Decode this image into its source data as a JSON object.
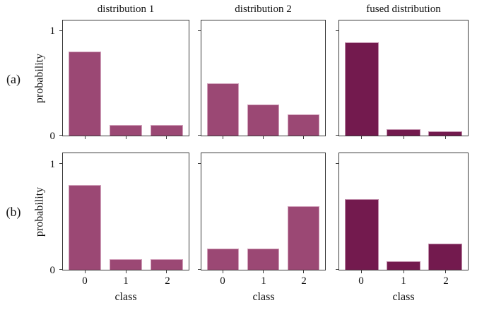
{
  "figure": {
    "row_labels": [
      "(a)",
      "(b)"
    ],
    "column_titles": [
      "distribution 1",
      "distribution 2",
      "fused distribution"
    ],
    "ylabel": "probability",
    "xlabel": "class",
    "ytick_labels": [
      "1",
      "0"
    ],
    "xtick_labels": [
      "0",
      "1",
      "2"
    ]
  },
  "colors": {
    "distribution_bar": "#9b4874",
    "fused_bar": "#731a4e",
    "axis": "#3a3a3a",
    "background": "#ffffff"
  },
  "chart_data": [
    {
      "type": "bar",
      "row": "a",
      "col": 0,
      "title": "distribution 1",
      "categories": [
        "0",
        "1",
        "2"
      ],
      "values": [
        0.8,
        0.1,
        0.1
      ],
      "xlabel": "class",
      "ylabel": "probability",
      "ylim": [
        0,
        1.1
      ],
      "yticks": [
        1,
        0
      ],
      "color": "distribution_bar"
    },
    {
      "type": "bar",
      "row": "a",
      "col": 1,
      "title": "distribution 2",
      "categories": [
        "0",
        "1",
        "2"
      ],
      "values": [
        0.5,
        0.3,
        0.2
      ],
      "xlabel": "class",
      "ylabel": "probability",
      "ylim": [
        0,
        1.1
      ],
      "yticks": [
        1,
        0
      ],
      "color": "distribution_bar"
    },
    {
      "type": "bar",
      "row": "a",
      "col": 2,
      "title": "fused distribution",
      "categories": [
        "0",
        "1",
        "2"
      ],
      "values": [
        0.89,
        0.06,
        0.04
      ],
      "xlabel": "class",
      "ylabel": "probability",
      "ylim": [
        0,
        1.1
      ],
      "yticks": [
        1,
        0
      ],
      "color": "fused_bar"
    },
    {
      "type": "bar",
      "row": "b",
      "col": 0,
      "title": "distribution 1",
      "categories": [
        "0",
        "1",
        "2"
      ],
      "values": [
        0.8,
        0.1,
        0.1
      ],
      "xlabel": "class",
      "ylabel": "probability",
      "ylim": [
        0,
        1.1
      ],
      "yticks": [
        1,
        0
      ],
      "color": "distribution_bar"
    },
    {
      "type": "bar",
      "row": "b",
      "col": 1,
      "title": "distribution 2",
      "categories": [
        "0",
        "1",
        "2"
      ],
      "values": [
        0.2,
        0.2,
        0.6
      ],
      "xlabel": "class",
      "ylabel": "probability",
      "ylim": [
        0,
        1.1
      ],
      "yticks": [
        1,
        0
      ],
      "color": "distribution_bar"
    },
    {
      "type": "bar",
      "row": "b",
      "col": 2,
      "title": "fused distribution",
      "categories": [
        "0",
        "1",
        "2"
      ],
      "values": [
        0.67,
        0.08,
        0.25
      ],
      "xlabel": "class",
      "ylabel": "probability",
      "ylim": [
        0,
        1.1
      ],
      "yticks": [
        1,
        0
      ],
      "color": "fused_bar"
    }
  ]
}
